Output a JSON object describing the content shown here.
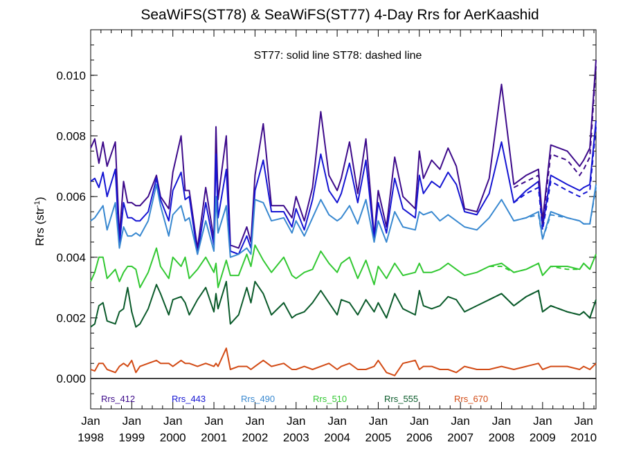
{
  "chart_data": {
    "type": "line",
    "title": "SeaWiFS(ST78) & SeaWiFS(ST77) 4-Day Rrs for AerKaashid",
    "note": "ST77: solid line   ST78: dashed line",
    "ylabel": "Rrs (str",
    "ylabel_sup": "-1",
    "ylabel_close": ")",
    "xlim": [
      1998.0,
      2010.3
    ],
    "ylim": [
      -0.001,
      0.0115
    ],
    "y_ticks": [
      0.0,
      0.002,
      0.004,
      0.006,
      0.008,
      0.01
    ],
    "y_tick_labels": [
      "0.000",
      "0.002",
      "0.004",
      "0.006",
      "0.008",
      "0.010"
    ],
    "x_ticks": [
      1998,
      1999,
      2000,
      2001,
      2002,
      2003,
      2004,
      2005,
      2006,
      2007,
      2008,
      2009,
      2010
    ],
    "x_tick_labels_top": [
      "Jan",
      "Jan",
      "Jan",
      "Jan",
      "Jan",
      "Jan",
      "Jan",
      "Jan",
      "Jan",
      "Jan",
      "Jan",
      "Jan",
      "Jan"
    ],
    "x_tick_labels_bottom": [
      "1998",
      "1999",
      "2000",
      "2001",
      "2002",
      "2003",
      "2004",
      "2005",
      "2006",
      "2007",
      "2008",
      "2009",
      "2010"
    ],
    "zero_line": 0.0,
    "x": [
      1998.0,
      1998.1,
      1998.2,
      1998.3,
      1998.4,
      1998.6,
      1998.7,
      1998.8,
      1998.9,
      1999.0,
      1999.1,
      1999.2,
      1999.4,
      1999.6,
      1999.7,
      1999.9,
      2000.0,
      2000.2,
      2000.3,
      2000.4,
      2000.6,
      2000.8,
      2001.0,
      2001.05,
      2001.1,
      2001.3,
      2001.4,
      2001.6,
      2001.8,
      2001.9,
      2002.0,
      2002.2,
      2002.4,
      2002.7,
      2002.9,
      2003.0,
      2003.2,
      2003.4,
      2003.6,
      2003.8,
      2004.0,
      2004.1,
      2004.3,
      2004.5,
      2004.7,
      2004.9,
      2005.0,
      2005.2,
      2005.4,
      2005.6,
      2005.9,
      2006.0,
      2006.1,
      2006.3,
      2006.5,
      2006.7,
      2006.9,
      2007.1,
      2007.4,
      2007.7,
      2008.0,
      2008.3,
      2008.6,
      2008.9,
      2009.0,
      2009.2,
      2009.6,
      2009.9,
      2010.0,
      2010.15,
      2010.3
    ],
    "series": [
      {
        "name": "Rrs_412",
        "color": "#3d0a8a",
        "values": [
          0.0076,
          0.0079,
          0.0071,
          0.0078,
          0.007,
          0.0078,
          0.0047,
          0.0065,
          0.0058,
          0.0058,
          0.0057,
          0.0057,
          0.006,
          0.0067,
          0.006,
          0.0056,
          0.0068,
          0.008,
          0.0062,
          0.0062,
          0.0043,
          0.0063,
          0.0046,
          0.0083,
          0.0059,
          0.008,
          0.0044,
          0.0043,
          0.005,
          0.0045,
          0.0067,
          0.0084,
          0.0057,
          0.0057,
          0.0053,
          0.006,
          0.0052,
          0.0063,
          0.0088,
          0.0067,
          0.0062,
          0.0066,
          0.0078,
          0.0061,
          0.0079,
          0.0047,
          0.0062,
          0.005,
          0.0073,
          0.006,
          0.0056,
          0.0075,
          0.0066,
          0.0072,
          0.0069,
          0.0076,
          0.007,
          0.0056,
          0.0055,
          0.0066,
          0.0097,
          0.0064,
          0.0067,
          0.0069,
          0.0052,
          0.0077,
          0.0075,
          0.007,
          0.0072,
          0.0076,
          0.0105
        ]
      },
      {
        "name": "Rrs_443",
        "color": "#1414d2",
        "values": [
          0.0065,
          0.0066,
          0.0063,
          0.0068,
          0.006,
          0.0069,
          0.0044,
          0.0058,
          0.0053,
          0.0053,
          0.0052,
          0.0052,
          0.0055,
          0.0066,
          0.0059,
          0.0052,
          0.0062,
          0.0068,
          0.0059,
          0.006,
          0.0041,
          0.0058,
          0.0044,
          0.0074,
          0.0053,
          0.0069,
          0.0042,
          0.0041,
          0.0047,
          0.0043,
          0.0062,
          0.0072,
          0.0055,
          0.0055,
          0.005,
          0.0056,
          0.0049,
          0.0059,
          0.0074,
          0.0062,
          0.0058,
          0.0061,
          0.0071,
          0.0058,
          0.0072,
          0.0046,
          0.0058,
          0.0048,
          0.0066,
          0.0056,
          0.0053,
          0.0067,
          0.0061,
          0.0065,
          0.0063,
          0.0068,
          0.0064,
          0.0055,
          0.0054,
          0.0061,
          0.0078,
          0.0058,
          0.0062,
          0.0065,
          0.005,
          0.0067,
          0.0064,
          0.0062,
          0.0063,
          0.0064,
          0.0085
        ]
      },
      {
        "name": "Rrs_490",
        "color": "#3888d0",
        "values": [
          0.0052,
          0.0053,
          0.0055,
          0.0057,
          0.0049,
          0.0058,
          0.0043,
          0.005,
          0.0047,
          0.0047,
          0.0048,
          0.0047,
          0.0052,
          0.0064,
          0.0057,
          0.0047,
          0.0054,
          0.0057,
          0.0052,
          0.0053,
          0.0041,
          0.0052,
          0.0042,
          0.006,
          0.0048,
          0.0057,
          0.004,
          0.0041,
          0.0043,
          0.0041,
          0.0059,
          0.0058,
          0.0052,
          0.0053,
          0.0048,
          0.0052,
          0.0047,
          0.0053,
          0.0059,
          0.0054,
          0.0052,
          0.0053,
          0.0057,
          0.0051,
          0.0059,
          0.0045,
          0.0052,
          0.0045,
          0.0055,
          0.005,
          0.0049,
          0.0055,
          0.0054,
          0.0055,
          0.0052,
          0.0054,
          0.0052,
          0.005,
          0.0049,
          0.0053,
          0.0059,
          0.0052,
          0.0053,
          0.0055,
          0.0046,
          0.0055,
          0.0053,
          0.0052,
          0.0051,
          0.0051,
          0.0064
        ]
      },
      {
        "name": "Rrs_510",
        "color": "#32c832",
        "values": [
          0.0032,
          0.0035,
          0.004,
          0.004,
          0.0033,
          0.0036,
          0.0032,
          0.0035,
          0.0037,
          0.0037,
          0.0036,
          0.003,
          0.0035,
          0.0043,
          0.0037,
          0.0033,
          0.004,
          0.0037,
          0.004,
          0.0033,
          0.0036,
          0.004,
          0.0035,
          0.0038,
          0.003,
          0.0039,
          0.0034,
          0.0034,
          0.0041,
          0.0037,
          0.0044,
          0.0039,
          0.0035,
          0.004,
          0.0034,
          0.0033,
          0.0035,
          0.0036,
          0.0042,
          0.0038,
          0.0035,
          0.0038,
          0.004,
          0.0033,
          0.0039,
          0.0031,
          0.0037,
          0.0033,
          0.0038,
          0.0034,
          0.0035,
          0.0038,
          0.0035,
          0.0035,
          0.0036,
          0.0038,
          0.0036,
          0.0034,
          0.0035,
          0.0037,
          0.0038,
          0.0035,
          0.0036,
          0.0038,
          0.0034,
          0.0037,
          0.0037,
          0.0036,
          0.0038,
          0.0036,
          0.0041
        ]
      },
      {
        "name": "Rrs_555",
        "color": "#0a5a2a",
        "values": [
          0.0017,
          0.0018,
          0.0024,
          0.0025,
          0.0019,
          0.0018,
          0.0022,
          0.0023,
          0.003,
          0.0022,
          0.0017,
          0.0018,
          0.0023,
          0.0031,
          0.0028,
          0.0021,
          0.0026,
          0.0027,
          0.0025,
          0.0021,
          0.0026,
          0.003,
          0.0022,
          0.0028,
          0.0023,
          0.0032,
          0.0018,
          0.0021,
          0.003,
          0.0025,
          0.0032,
          0.0028,
          0.0021,
          0.0025,
          0.002,
          0.0021,
          0.0022,
          0.0025,
          0.0029,
          0.0025,
          0.0021,
          0.0026,
          0.0025,
          0.0021,
          0.0026,
          0.0022,
          0.0025,
          0.002,
          0.0028,
          0.0023,
          0.0021,
          0.0029,
          0.0024,
          0.0023,
          0.0024,
          0.0027,
          0.0026,
          0.0022,
          0.0024,
          0.0026,
          0.0028,
          0.0024,
          0.0027,
          0.0029,
          0.0022,
          0.0024,
          0.0022,
          0.0021,
          0.0022,
          0.002,
          0.0026
        ]
      },
      {
        "name": "Rrs_670",
        "color": "#d24a14",
        "values": [
          0.0003,
          0.00025,
          0.0005,
          0.0005,
          0.0003,
          0.0002,
          0.0004,
          0.0005,
          0.0004,
          0.0006,
          0.0002,
          0.0004,
          0.0005,
          0.0006,
          0.0005,
          0.0005,
          0.0004,
          0.0006,
          0.0005,
          0.0005,
          0.0004,
          0.0005,
          0.0004,
          0.0005,
          0.0004,
          0.001,
          0.0003,
          0.0004,
          0.0004,
          0.0003,
          0.0004,
          0.0006,
          0.0004,
          0.0005,
          0.0003,
          0.0003,
          0.0004,
          0.0003,
          0.0004,
          0.0005,
          0.0003,
          0.0004,
          0.0005,
          0.0003,
          0.0003,
          0.0004,
          0.0006,
          0.0002,
          0.0001,
          0.0005,
          0.0006,
          0.0003,
          0.0004,
          0.0004,
          0.0003,
          0.0003,
          0.0002,
          0.0004,
          0.0003,
          0.0003,
          0.0004,
          0.0003,
          0.0004,
          0.0005,
          0.0003,
          0.0004,
          0.0004,
          0.0003,
          0.0004,
          0.0003,
          0.0005
        ]
      }
    ],
    "dashed_series": [
      {
        "name": "Rrs_412",
        "color": "#3d0a8a",
        "x": [
          2008.3,
          2008.6,
          2008.9,
          2009.0,
          2009.2,
          2009.6,
          2009.9,
          2010.0,
          2010.15,
          2010.3
        ],
        "values": [
          0.0063,
          0.0065,
          0.0067,
          0.0051,
          0.0074,
          0.0072,
          0.0067,
          0.0069,
          0.0073,
          0.0103
        ]
      },
      {
        "name": "Rrs_443",
        "color": "#1414d2",
        "x": [
          2008.3,
          2008.6,
          2008.9,
          2009.0,
          2009.2,
          2009.6,
          2009.9,
          2010.0,
          2010.15,
          2010.3
        ],
        "values": [
          0.0058,
          0.0061,
          0.0063,
          0.0049,
          0.0065,
          0.0062,
          0.006,
          0.0061,
          0.0062,
          0.0083
        ]
      },
      {
        "name": "Rrs_490",
        "color": "#3888d0",
        "x": [
          2008.3,
          2008.6,
          2008.9,
          2009.0,
          2009.2,
          2009.6,
          2009.9,
          2010.0,
          2010.15,
          2010.3
        ],
        "values": [
          0.0052,
          0.0053,
          0.0054,
          0.0046,
          0.0054,
          0.0053,
          0.0052,
          0.0051,
          0.0051,
          0.0063
        ]
      },
      {
        "name": "Rrs_510",
        "color": "#32c832",
        "x": [
          2007.7,
          2008.0,
          2008.3,
          2008.6,
          2008.9,
          2009.0,
          2009.2,
          2009.6,
          2009.9,
          2010.0,
          2010.15,
          2010.3
        ],
        "values": [
          0.0037,
          0.0037,
          0.0035,
          0.0036,
          0.0038,
          0.0034,
          0.0037,
          0.0036,
          0.0036,
          0.0038,
          0.0036,
          0.0041
        ]
      },
      {
        "name": "Rrs_555",
        "color": "#0a5a2a",
        "x": [
          2007.7,
          2008.0,
          2008.3,
          2008.6,
          2008.9,
          2009.0,
          2009.2,
          2009.6,
          2009.9,
          2010.0,
          2010.15,
          2010.3
        ],
        "values": [
          0.0026,
          0.0028,
          0.0024,
          0.0027,
          0.0029,
          0.0022,
          0.0024,
          0.0022,
          0.0021,
          0.0022,
          0.002,
          0.0026
        ]
      }
    ],
    "legend": [
      {
        "name": "Rrs_412",
        "color": "#3d0a8a"
      },
      {
        "name": "Rrs_443",
        "color": "#1414d2"
      },
      {
        "name": "Rrs_490",
        "color": "#3888d0"
      },
      {
        "name": "Rrs_510",
        "color": "#32c832"
      },
      {
        "name": "Rrs_555",
        "color": "#0a5a2a"
      },
      {
        "name": "Rrs_670",
        "color": "#d24a14"
      }
    ],
    "legend_placement": "bottom-inside",
    "grid": false
  }
}
